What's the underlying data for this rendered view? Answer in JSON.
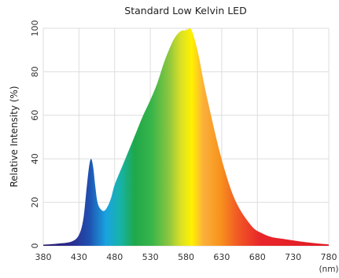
{
  "chart_data": {
    "type": "area",
    "title": "Standard Low Kelvin LED",
    "xlabel": "",
    "x_unit": "(nm)",
    "ylabel": "Relative Intensity (%)",
    "xlim": [
      380,
      780
    ],
    "ylim": [
      0,
      100
    ],
    "x_ticks": [
      380,
      430,
      480,
      530,
      580,
      630,
      680,
      730,
      780
    ],
    "y_ticks": [
      0,
      20,
      40,
      60,
      80,
      100
    ],
    "grid": true,
    "fill": "visible spectrum gradient",
    "series": [
      {
        "x": [
          380,
          400,
          420,
          430,
          436,
          440,
          444,
          447,
          450,
          453,
          456,
          460,
          465,
          470,
          475,
          480,
          490,
          500,
          510,
          520,
          530,
          540,
          550,
          560,
          565,
          570,
          575,
          580,
          585,
          588,
          592,
          598,
          605,
          615,
          625,
          635,
          645,
          655,
          665,
          675,
          685,
          700,
          720,
          740,
          760,
          780
        ],
        "y": [
          0.5,
          1,
          2,
          5,
          12,
          24,
          36,
          40,
          36,
          27,
          20,
          17,
          16,
          18,
          22,
          28,
          36,
          44,
          52,
          60,
          67,
          75,
          85,
          93,
          96,
          98,
          99,
          99,
          100,
          99,
          95,
          87,
          75,
          60,
          46,
          34,
          24,
          17,
          12,
          8,
          6,
          4,
          3,
          2,
          1.2,
          0.6
        ]
      }
    ]
  }
}
